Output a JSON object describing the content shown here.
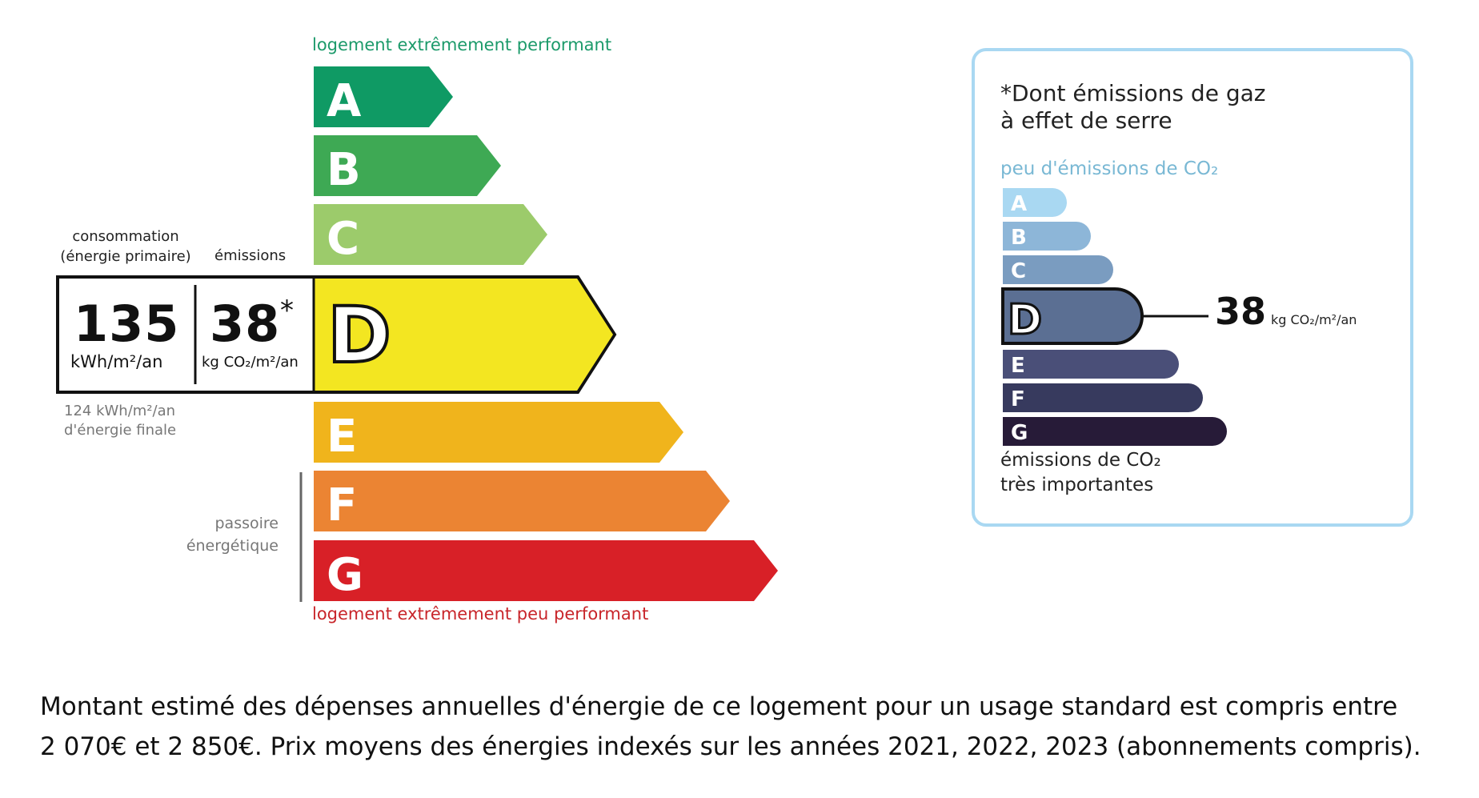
{
  "energy_label": {
    "top_label": "logement extrêmement performant",
    "bottom_label": "logement extrêmement peu performant",
    "classes": [
      "A",
      "B",
      "C",
      "D",
      "E",
      "F",
      "G"
    ],
    "colors": [
      "#0f9a64",
      "#3ea954",
      "#9ccb6b",
      "#f3e621",
      "#f0b41c",
      "#eb8433",
      "#d82027"
    ],
    "current_class": "D",
    "consumption_label": "consommation (énergie primaire)",
    "emissions_label": "émissions",
    "consumption_value": "135",
    "consumption_unit": "kWh/m²/an",
    "emissions_value": "38",
    "emissions_star": "*",
    "emissions_unit": "kg CO₂/m²/an",
    "final_energy_line1": "124 kWh/m²/an",
    "final_energy_line2": "d'énergie finale",
    "passoire_line1": "passoire",
    "passoire_line2": "énergétique"
  },
  "ges_label": {
    "title_line1": "*Dont émissions de gaz",
    "title_line2": "à effet de serre",
    "top_label": "peu d'émissions de CO₂",
    "bottom_line1": "émissions de CO₂",
    "bottom_line2": "très importantes",
    "classes": [
      "A",
      "B",
      "C",
      "D",
      "E",
      "F",
      "G"
    ],
    "colors": [
      "#a9d8f2",
      "#8db6d8",
      "#7a9cc0",
      "#5b6f93",
      "#4a4f78",
      "#373a5e",
      "#271b38"
    ],
    "current_class": "D",
    "value": "38",
    "unit": "kg CO₂/m²/an",
    "border_color": "#a9d8f2"
  },
  "footer": {
    "line1": "Montant estimé des dépenses annuelles d'énergie de ce logement pour un usage standard est compris entre",
    "line2": "2 070€ et 2 850€. Prix moyens des énergies indexés sur les années 2021, 2022, 2023 (abonnements compris)."
  }
}
